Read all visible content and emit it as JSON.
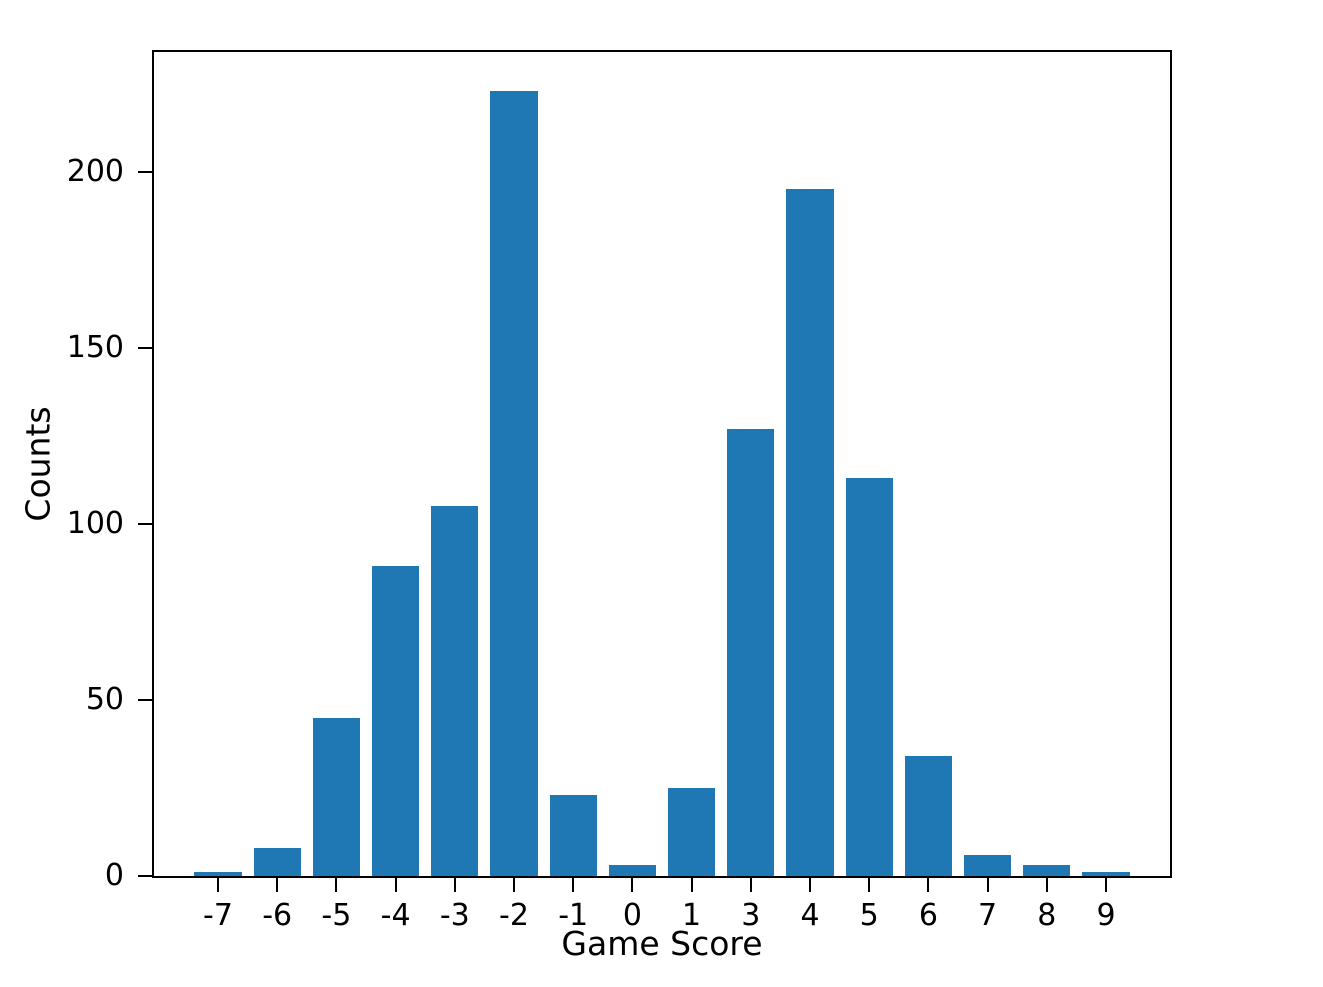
{
  "chart_data": {
    "type": "bar",
    "title": "",
    "xlabel": "Game Score",
    "ylabel": "Counts",
    "categories": [
      "-7",
      "-6",
      "-5",
      "-4",
      "-3",
      "-2",
      "-1",
      "0",
      "1",
      "3",
      "4",
      "5",
      "6",
      "7",
      "8",
      "9"
    ],
    "values": [
      1,
      8,
      45,
      88,
      105,
      223,
      23,
      3,
      25,
      127,
      195,
      113,
      34,
      6,
      3,
      1
    ],
    "yticks": [
      0,
      50,
      100,
      150,
      200
    ],
    "ylim": [
      0,
      234
    ],
    "xlim_note": "categorical axis, no value 2 present",
    "grid": "off",
    "legend": "none",
    "bar_color": "#1f77b4",
    "axis_color": "#000000",
    "background_color": "#ffffff"
  }
}
